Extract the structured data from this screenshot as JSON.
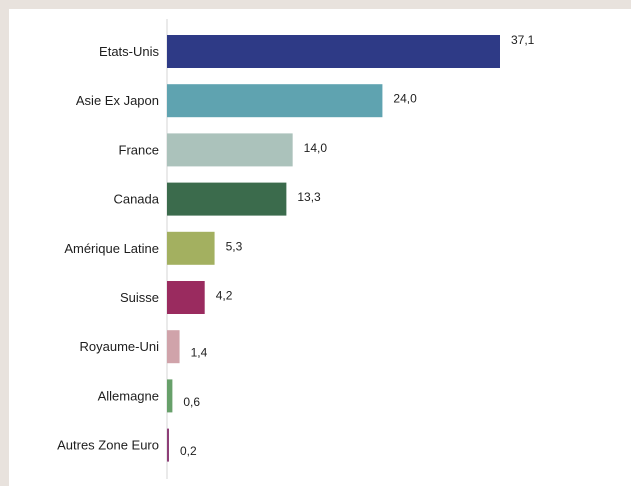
{
  "chart_data": {
    "type": "bar",
    "orientation": "horizontal",
    "categories": [
      "Etats-Unis",
      "Asie Ex Japon",
      "France",
      "Canada",
      "Amérique Latine",
      "Suisse",
      "Royaume-Uni",
      "Allemagne",
      "Autres Zone Euro"
    ],
    "values": [
      37.1,
      24.0,
      14.0,
      13.3,
      5.3,
      4.2,
      1.4,
      0.6,
      0.2
    ],
    "value_labels": [
      "37,1",
      "24,0",
      "14,0",
      "13,3",
      "5,3",
      "4,2",
      "1,4",
      "0,6",
      "0,2"
    ],
    "colors": [
      "#2e3a86",
      "#5fa3b0",
      "#abc2bb",
      "#3b6b4c",
      "#a3b060",
      "#9a2b5f",
      "#d0a3aa",
      "#67a06a",
      "#8e3f78"
    ],
    "title": "",
    "xlabel": "",
    "ylabel": "",
    "xlim": [
      0,
      37.1
    ],
    "grid": false,
    "legend": "none"
  }
}
